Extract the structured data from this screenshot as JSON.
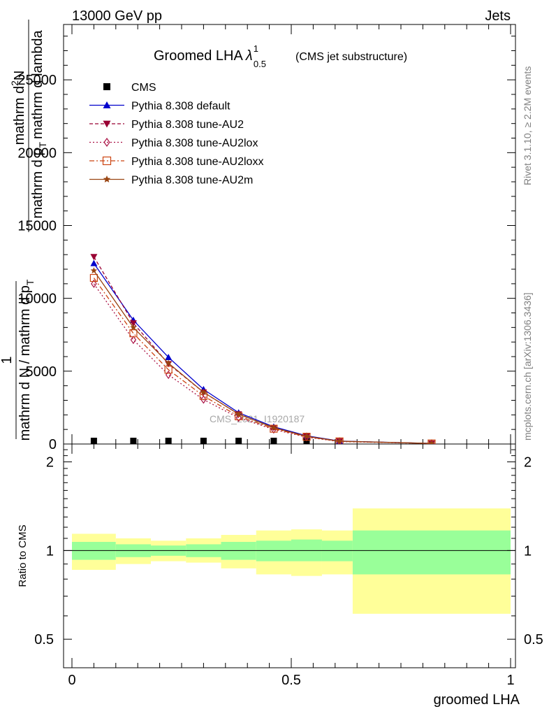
{
  "header": {
    "left": "13000 GeV pp",
    "right": "Jets"
  },
  "side_labels": {
    "rivet": "Rivet 3.1.10, ≥ 2.2M events",
    "mcplots": "mcplots.cern.ch [arXiv:1306.3436]"
  },
  "watermark": "CMS_2021_I1920187",
  "chart_data": [
    {
      "type": "line",
      "title": "Groomed LHA",
      "title_symbol": "λ",
      "title_sup": "1",
      "title_sub": "0.5",
      "subtitle": "(CMS jet substructure)",
      "ylabel": "1/(mathrm d N / mathrm d p_T) mathrm d²N/(mathrm d p_T mathrm d lambda)",
      "ylabel_parts": {
        "num_1": "1",
        "den_1": "mathrm d N / mathrm d p",
        "den_1_sub": "T",
        "num_2": "mathrm d",
        "num_2_sup": "2",
        "num_2_tail": "N",
        "den_2": "mathrm d p",
        "den_2_sub": "T",
        "den_2_tail": "mathrm d lambda"
      },
      "xlim": [
        0,
        1
      ],
      "ylim": [
        0,
        28800
      ],
      "y_ticks": [
        "0",
        "5000",
        "10000",
        "15000",
        "20000",
        "25000"
      ],
      "y_tick_values": [
        0,
        5000,
        10000,
        15000,
        20000,
        25000
      ],
      "legend_position": "top-left",
      "series": [
        {
          "name": "CMS",
          "color": "#000000",
          "marker": "square",
          "x": [
            0.05,
            0.14,
            0.22,
            0.3,
            0.38,
            0.46,
            0.535
          ],
          "y": [
            0,
            0,
            0,
            0,
            0,
            0,
            0
          ]
        },
        {
          "name": "Pythia 8.308 default",
          "color": "#0000cc",
          "marker": "triangle-up",
          "line": "solid",
          "x": [
            0.05,
            0.14,
            0.22,
            0.3,
            0.38,
            0.46,
            0.535,
            0.61,
            0.82
          ],
          "y": [
            12400,
            8500,
            5950,
            3750,
            2150,
            1180,
            560,
            200,
            40
          ]
        },
        {
          "name": "Pythia 8.308 tune-AU2",
          "color": "#990033",
          "marker": "triangle-down",
          "line": "dashed",
          "x": [
            0.05,
            0.14,
            0.22,
            0.3,
            0.38,
            0.46,
            0.535,
            0.61,
            0.82
          ],
          "y": [
            12850,
            8300,
            5500,
            3550,
            2050,
            1120,
            530,
            190,
            40
          ]
        },
        {
          "name": "Pythia 8.308 tune-AU2lox",
          "color": "#aa1144",
          "marker": "diamond",
          "line": "dotted",
          "x": [
            0.05,
            0.14,
            0.22,
            0.3,
            0.38,
            0.46,
            0.535,
            0.61,
            0.82
          ],
          "y": [
            11000,
            7150,
            4750,
            3050,
            1800,
            1000,
            470,
            170,
            35
          ]
        },
        {
          "name": "Pythia 8.308 tune-AU2loxx",
          "color": "#cc4411",
          "marker": "open-square",
          "line": "dashdot",
          "x": [
            0.05,
            0.14,
            0.22,
            0.3,
            0.38,
            0.46,
            0.535,
            0.61,
            0.82
          ],
          "y": [
            11400,
            7600,
            5100,
            3300,
            1900,
            1050,
            500,
            180,
            38
          ]
        },
        {
          "name": "Pythia 8.308 tune-AU2m",
          "color": "#994411",
          "marker": "star",
          "line": "solid",
          "x": [
            0.05,
            0.14,
            0.22,
            0.3,
            0.38,
            0.46,
            0.535,
            0.61,
            0.82
          ],
          "y": [
            11900,
            8000,
            5550,
            3550,
            2050,
            1120,
            530,
            190,
            40
          ]
        }
      ]
    },
    {
      "type": "area",
      "ylabel": "Ratio to CMS",
      "xlabel": "groomed LHA",
      "xlim": [
        0,
        1
      ],
      "ylim": [
        0.4,
        2.3
      ],
      "y_ticks": [
        "0.5",
        "1",
        "2"
      ],
      "y_tick_values": [
        0.5,
        1,
        2
      ],
      "x_ticks": [
        "0",
        "0.5",
        "1"
      ],
      "x_tick_values": [
        0,
        0.5,
        1
      ],
      "reference": 1,
      "colors": {
        "inner": "#99ff99",
        "outer": "#ffff99"
      },
      "bins": [
        {
          "lo": 0.0,
          "hi": 0.1,
          "inner": [
            0.93,
            1.07
          ],
          "outer": [
            0.86,
            1.14
          ]
        },
        {
          "lo": 0.1,
          "hi": 0.18,
          "inner": [
            0.95,
            1.05
          ],
          "outer": [
            0.9,
            1.1
          ]
        },
        {
          "lo": 0.18,
          "hi": 0.26,
          "inner": [
            0.96,
            1.04
          ],
          "outer": [
            0.92,
            1.08
          ]
        },
        {
          "lo": 0.26,
          "hi": 0.34,
          "inner": [
            0.95,
            1.05
          ],
          "outer": [
            0.91,
            1.1
          ]
        },
        {
          "lo": 0.34,
          "hi": 0.42,
          "inner": [
            0.93,
            1.07
          ],
          "outer": [
            0.87,
            1.13
          ]
        },
        {
          "lo": 0.42,
          "hi": 0.5,
          "inner": [
            0.92,
            1.08
          ],
          "outer": [
            0.83,
            1.17
          ]
        },
        {
          "lo": 0.5,
          "hi": 0.57,
          "inner": [
            0.92,
            1.09
          ],
          "outer": [
            0.82,
            1.18
          ]
        },
        {
          "lo": 0.57,
          "hi": 0.64,
          "inner": [
            0.92,
            1.08
          ],
          "outer": [
            0.83,
            1.17
          ]
        },
        {
          "lo": 0.64,
          "hi": 1.0,
          "inner": [
            0.83,
            1.17
          ],
          "outer": [
            0.61,
            1.39
          ]
        }
      ]
    }
  ]
}
